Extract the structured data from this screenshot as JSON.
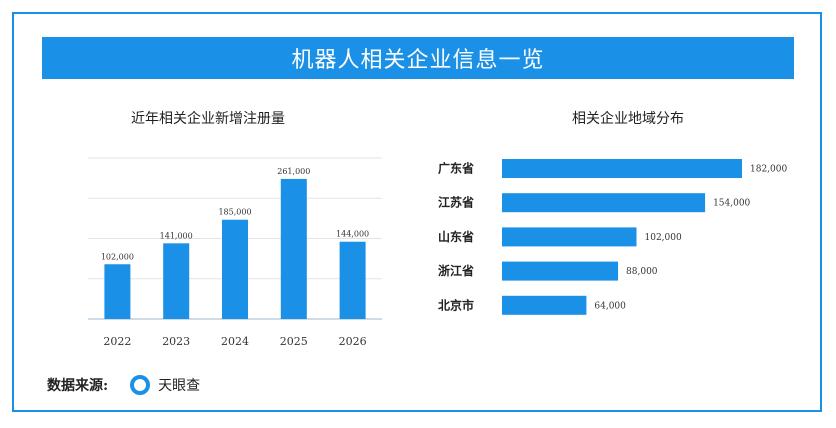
{
  "title": "机器人相关企业信息一览",
  "source": {
    "label": "数据来源:",
    "icon": "ring-icon",
    "name": "天眼查"
  },
  "colors": {
    "accent": "#1a90e6",
    "grid": "#e3e3e3"
  },
  "chart_data": [
    {
      "type": "bar",
      "title": "近年相关企业新增注册量",
      "categories": [
        "2022",
        "2023",
        "2024",
        "2025",
        "2026"
      ],
      "values": [
        102000,
        141000,
        185000,
        261000,
        144000
      ],
      "value_labels": [
        "102,000",
        "141,000",
        "185,000",
        "261,000",
        "144,000"
      ],
      "ylim": [
        0,
        300000
      ],
      "grid": true
    },
    {
      "type": "bar",
      "orientation": "horizontal",
      "title": "相关企业地域分布",
      "categories": [
        "广东省",
        "江苏省",
        "山东省",
        "浙江省",
        "北京市"
      ],
      "values": [
        182000,
        154000,
        102000,
        88000,
        64000
      ],
      "value_labels": [
        "182,000",
        "154,000",
        "102,000",
        "88,000",
        "64,000"
      ],
      "xlim": [
        0,
        182000
      ]
    }
  ]
}
